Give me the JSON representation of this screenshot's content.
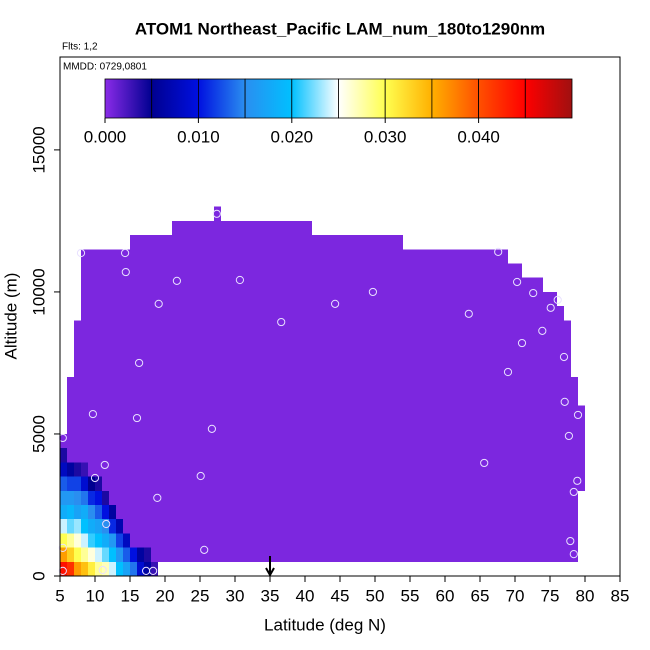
{
  "chart_data": {
    "type": "heatmap",
    "title": "ATOM1 Northeast_Pacific LAM_num_180to1290nm",
    "annotations": [
      "Flts: 1,2",
      "MMDD: 0729,0801"
    ],
    "x_label": "Latitude (deg N)",
    "y_label": "Altitude (m)",
    "xlim": [
      5,
      85
    ],
    "ylim": [
      0,
      18270
    ],
    "xticks": [
      5,
      10,
      15,
      20,
      25,
      30,
      35,
      40,
      45,
      50,
      55,
      60,
      65,
      70,
      75,
      80,
      85
    ],
    "yticks": [
      0,
      5000,
      10000,
      15000
    ],
    "arrow_lat": 35,
    "clim": [
      0,
      0.05
    ],
    "cticks": [
      {
        "value": 0,
        "label": "0.000"
      },
      {
        "value": 0.01,
        "label": "0.010"
      },
      {
        "value": 0.02,
        "label": "0.020"
      },
      {
        "value": 0.03,
        "label": "0.030"
      },
      {
        "value": 0.04,
        "label": "0.040"
      }
    ],
    "colormap": [
      {
        "value": 0,
        "color": "#8a2be8"
      },
      {
        "value": 0.005,
        "color": "#000090"
      },
      {
        "value": 0.01,
        "color": "#0010e0"
      },
      {
        "value": 0.015,
        "color": "#2a8ef0"
      },
      {
        "value": 0.02,
        "color": "#00c0ff"
      },
      {
        "value": 0.025,
        "color": "#ffffff"
      },
      {
        "value": 0.03,
        "color": "#ffff50"
      },
      {
        "value": 0.035,
        "color": "#ffb000"
      },
      {
        "value": 0.04,
        "color": "#ff5000"
      },
      {
        "value": 0.045,
        "color": "#ff0000"
      },
      {
        "value": 0.05,
        "color": "#a01010"
      }
    ],
    "regions": [
      {
        "lat": [
          5,
          6
        ],
        "alt": [
          500,
          5000
        ],
        "value": 0.0005
      },
      {
        "lat": [
          6,
          7
        ],
        "alt": [
          500,
          7000
        ],
        "value": 0.0005
      },
      {
        "lat": [
          7,
          8
        ],
        "alt": [
          500,
          9000
        ],
        "value": 0.0005
      },
      {
        "lat": [
          8,
          15
        ],
        "alt": [
          500,
          11500
        ],
        "value": 0.0005
      },
      {
        "lat": [
          15,
          21
        ],
        "alt": [
          500,
          12000
        ],
        "value": 0.0005
      },
      {
        "lat": [
          21,
          27
        ],
        "alt": [
          500,
          12500
        ],
        "value": 0.0005
      },
      {
        "lat": [
          27,
          28
        ],
        "alt": [
          500,
          13000
        ],
        "value": 0.0005
      },
      {
        "lat": [
          28,
          41
        ],
        "alt": [
          500,
          12500
        ],
        "value": 0.0005
      },
      {
        "lat": [
          41,
          54
        ],
        "alt": [
          500,
          12000
        ],
        "value": 0.0005
      },
      {
        "lat": [
          54,
          69
        ],
        "alt": [
          500,
          11500
        ],
        "value": 0.0005
      },
      {
        "lat": [
          69,
          71
        ],
        "alt": [
          500,
          11000
        ],
        "value": 0.0005
      },
      {
        "lat": [
          71,
          74
        ],
        "alt": [
          500,
          10500
        ],
        "value": 0.0005
      },
      {
        "lat": [
          74,
          76
        ],
        "alt": [
          500,
          10000
        ],
        "value": 0.0005
      },
      {
        "lat": [
          76,
          77
        ],
        "alt": [
          500,
          9500
        ],
        "value": 0.0005
      },
      {
        "lat": [
          77,
          78
        ],
        "alt": [
          500,
          9000
        ],
        "value": 0.0005
      },
      {
        "lat": [
          78,
          79
        ],
        "alt": [
          500,
          7000
        ],
        "value": 0.0005
      },
      {
        "lat": [
          79,
          80
        ],
        "alt": [
          3000,
          6000
        ],
        "value": 0.0005
      }
    ],
    "cell_size": [
      1,
      500
    ],
    "cells": [
      {
        "lat": 5,
        "values": [
          0.044,
          0.036,
          0.03,
          0.024,
          0.018,
          0.016,
          0.013,
          0.008,
          0.004
        ]
      },
      {
        "lat": 6,
        "values": [
          0.042,
          0.033,
          0.028,
          0.022,
          0.019,
          0.016,
          0.012,
          0.006
        ]
      },
      {
        "lat": 7,
        "values": [
          0.036,
          0.03,
          0.026,
          0.023,
          0.017,
          0.015,
          0.012,
          0.004
        ]
      },
      {
        "lat": 8,
        "values": [
          0.034,
          0.028,
          0.024,
          0.02,
          0.018,
          0.014,
          0.009,
          0.003
        ]
      },
      {
        "lat": 9,
        "values": [
          0.031,
          0.026,
          0.021,
          0.018,
          0.015,
          0.011,
          0.005
        ]
      },
      {
        "lat": 10,
        "values": [
          0.028,
          0.024,
          0.02,
          0.017,
          0.013,
          0.01,
          0.004
        ]
      },
      {
        "lat": 11,
        "values": [
          0.027,
          0.022,
          0.018,
          0.015,
          0.01,
          0.004
        ]
      },
      {
        "lat": 12,
        "values": [
          0.024,
          0.02,
          0.016,
          0.011,
          0.006
        ]
      },
      {
        "lat": 13,
        "values": [
          0.02,
          0.016,
          0.012,
          0.007
        ]
      },
      {
        "lat": 14,
        "values": [
          0.017,
          0.013,
          0.008
        ]
      },
      {
        "lat": 15,
        "values": [
          0.014,
          0.01
        ]
      },
      {
        "lat": 16,
        "values": [
          0.009,
          0.006
        ]
      },
      {
        "lat": 17,
        "values": [
          0.006,
          0.004
        ]
      },
      {
        "lat": 18,
        "values": [
          0.003
        ]
      }
    ],
    "points": {
      "x": [
        8,
        14.3,
        14.4,
        21.7,
        19.1,
        30.7,
        27.4,
        36.6,
        44.3,
        49.7,
        63.4,
        67.6,
        70.3,
        72.6,
        75.1,
        76.1,
        73.9,
        71,
        69,
        77,
        16.3,
        9.7,
        16,
        26.7,
        5.4,
        77.1,
        79,
        77.7,
        65.6,
        11.4,
        10,
        25.1,
        18.9,
        78.9,
        78.4,
        11.6,
        77.9,
        78.4,
        25.6,
        5.4,
        5.4,
        11.1,
        17.3,
        18.3
      ],
      "y": [
        11370,
        11370,
        10700,
        10390,
        9580,
        10420,
        12750,
        8940,
        9580,
        10000,
        9230,
        11410,
        10350,
        9960,
        9440,
        9720,
        8630,
        8200,
        7180,
        7710,
        7500,
        5700,
        5560,
        5180,
        4860,
        6130,
        5670,
        4930,
        3980,
        3910,
        3450,
        3520,
        2750,
        3350,
        2960,
        1830,
        1230,
        770,
        920,
        990,
        180,
        210,
        180,
        180
      ]
    }
  }
}
